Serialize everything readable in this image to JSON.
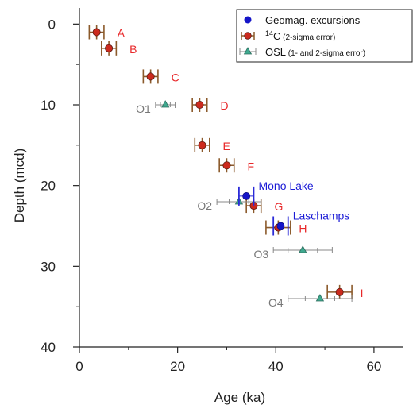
{
  "colors": {
    "c14_fill": "#cc2a1e",
    "c14_err": "#8b5a2b",
    "osl_fill": "#3fa98f",
    "osl_err": "#888888",
    "geomag_fill": "#1515c8",
    "geomag_err": "#2b2bd8",
    "label_red": "#e8282a",
    "label_grey": "#777777",
    "label_blue": "#1b1bd6"
  },
  "chart_data": {
    "type": "scatter",
    "xlabel": "Age (ka)",
    "ylabel": "Depth (mcd)",
    "xlim": [
      0,
      66
    ],
    "ylim": [
      40,
      -2
    ],
    "y_inverted": true,
    "xticks": [
      0,
      20,
      40,
      60
    ],
    "yticks": [
      0,
      10,
      20,
      30,
      40
    ],
    "grid": false,
    "legend_position": "top-right",
    "legend": [
      {
        "key": "geomag",
        "main": "Geomag. excursions",
        "sup": "",
        "small": ""
      },
      {
        "key": "c14",
        "main": "C",
        "sup": "14",
        "small": " (2-sigma error)"
      },
      {
        "key": "osl",
        "main": "OSL",
        "sup": "",
        "small": " (1- and 2-sigma error)"
      }
    ],
    "series": [
      {
        "key": "c14",
        "points": [
          {
            "label": "A",
            "x": 3.5,
            "y": 1.0,
            "err": 1.5
          },
          {
            "label": "B",
            "x": 6.0,
            "y": 3.0,
            "err": 1.5
          },
          {
            "label": "C",
            "x": 14.5,
            "y": 6.5,
            "err": 1.5
          },
          {
            "label": "D",
            "x": 24.5,
            "y": 10.0,
            "err": 1.5
          },
          {
            "label": "E",
            "x": 25.0,
            "y": 15.0,
            "err": 1.5
          },
          {
            "label": "F",
            "x": 30.0,
            "y": 17.5,
            "err": 1.5
          },
          {
            "label": "G",
            "x": 35.5,
            "y": 22.5,
            "err": 1.5
          },
          {
            "label": "H",
            "x": 40.5,
            "y": 25.2,
            "err": 2.5
          },
          {
            "label": "I",
            "x": 53.0,
            "y": 33.2,
            "err": 2.5
          }
        ]
      },
      {
        "key": "osl",
        "points": [
          {
            "label": "O1",
            "x": 17.5,
            "y": 10.0,
            "err1": 1.0,
            "err2": 2.0
          },
          {
            "label": "O2",
            "x": 32.5,
            "y": 22.0,
            "err1": 2.0,
            "err2": 4.5
          },
          {
            "label": "O3",
            "x": 45.5,
            "y": 28.0,
            "err1": 3.0,
            "err2": 6.0
          },
          {
            "label": "O4",
            "x": 49.0,
            "y": 34.0,
            "err1": 3.0,
            "err2": 6.5
          }
        ]
      },
      {
        "key": "geomag",
        "points": [
          {
            "label": "Mono Lake",
            "x": 34.0,
            "y": 21.3,
            "err": 1.5
          },
          {
            "label": "Laschamps",
            "x": 41.0,
            "y": 25.0,
            "err": 1.5
          }
        ]
      }
    ]
  }
}
